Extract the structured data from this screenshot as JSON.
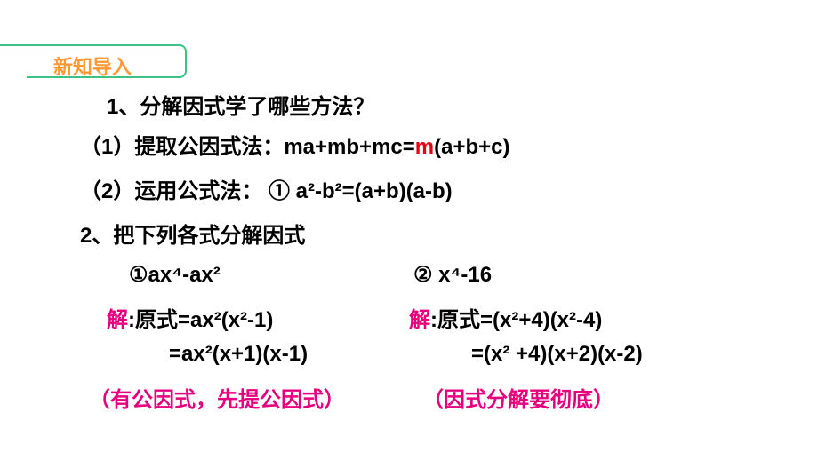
{
  "colors": {
    "background": "#ffffff",
    "text": "#000000",
    "highlight_red": "#e60012",
    "highlight_magenta": "#e6007e",
    "header_border": "#3bc284",
    "header_text": "#ff9933"
  },
  "typography": {
    "body_fontsize": 24,
    "body_weight": "bold",
    "header_fontsize": 22,
    "font_family": "Microsoft YaHei"
  },
  "header": {
    "label": "新知导入"
  },
  "question1": {
    "text": "1、分解因式学了哪些方法？"
  },
  "answer1": {
    "prefix": "（1）提取公因式法：ma+mb+mc=",
    "highlight": "m",
    "suffix": "(a+b+c)"
  },
  "answer2": {
    "text": "（2）运用公式法： ①   a²-b²=(a+b)(a-b)"
  },
  "question2": {
    "text": "2、把下列各式分解因式"
  },
  "exercise1": {
    "label": "①ax⁴-ax²"
  },
  "exercise2": {
    "label": "② x⁴-16"
  },
  "solution1": {
    "label": "解",
    "line1": ":原式=ax²(x²-1)",
    "line2": "=ax²(x+1)(x-1)"
  },
  "solution2": {
    "label": "解",
    "line1": ":原式=(x²+4)(x²-4)",
    "line2": "=(x² +4)(x+2)(x-2)"
  },
  "note1": {
    "text": "（有公因式，先提公因式）"
  },
  "note2": {
    "text": "（因式分解要彻底）"
  }
}
